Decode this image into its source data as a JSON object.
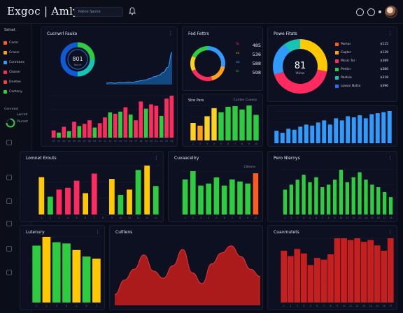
{
  "header": {
    "title": "Exgoc | Amlytics",
    "search_placeholder": "Ratoe Savne",
    "icons": [
      "bell-icon",
      "settings-icon",
      "help-icon",
      "menu-icon"
    ]
  },
  "sidebar": {
    "heading": "Salnat",
    "items": [
      {
        "label": "Cacer",
        "color": "#ff5a1f"
      },
      {
        "label": "Cracer",
        "color": "#ff9f1a"
      },
      {
        "label": "Conntaex",
        "color": "#2f9bff"
      },
      {
        "label": "Ckaner",
        "color": "#ff2b5e"
      },
      {
        "label": "Dnetee",
        "color": "#ff3b3b"
      },
      {
        "label": "Cacteny",
        "color": "#2ecc40"
      }
    ],
    "section_label": "Cenreasl",
    "sub_items": [
      "Lorcnd",
      "Plurast"
    ]
  },
  "panels": {
    "p1": {
      "title": "Cucnwrl Fauko",
      "donut_value": "801",
      "donut_sub": "Raccit"
    },
    "p2": {
      "title": "Fed Fettrs",
      "stats": [
        {
          "label": "Ta",
          "value": "485"
        },
        {
          "label": "sa",
          "value": "536"
        },
        {
          "label": "aa",
          "value": "588"
        },
        {
          "label": "la",
          "value": "598"
        }
      ]
    },
    "p3": {
      "title": "Powe Fitats",
      "donut_value": "81",
      "donut_sub": "Vtinan",
      "legend": [
        {
          "label": "Pomar",
          "value": "$115",
          "color": "#ff5a1f"
        },
        {
          "label": "Captsr",
          "value": "$139",
          "color": "#ff9f1a"
        },
        {
          "label": "Mcsic Tar",
          "value": "$389",
          "color": "#ff2b5e"
        },
        {
          "label": "Pmtisr",
          "value": "$380",
          "color": "#2ecc40"
        },
        {
          "label": "Pastsia",
          "value": "$318",
          "color": "#17c3b2"
        },
        {
          "label": "Lowan Natta",
          "value": "$396",
          "color": "#2f6bff"
        }
      ]
    },
    "p4": {
      "title": "Stre Pers",
      "legend": "Cuntes Cuaerp"
    },
    "p6": {
      "title": "Lomnet Erouts"
    },
    "p7": {
      "title": "Cuvaacellry",
      "legend": "Cliterre"
    },
    "p8": {
      "title": "Pero Nlernys"
    },
    "p9": {
      "title": "Lutenury"
    },
    "p10": {
      "title": "Culltens"
    },
    "p11": {
      "title": "Cuavrnutets"
    }
  },
  "chart_data": [
    {
      "type": "area",
      "panel": "p1",
      "values": [
        4,
        5,
        4,
        6,
        5,
        7,
        6,
        9,
        11,
        13,
        17,
        22,
        26,
        34,
        48,
        90
      ]
    },
    {
      "type": "bar",
      "panel": "p1",
      "categories": [
        "01",
        "02",
        "03",
        "04",
        "05",
        "06",
        "07",
        "08",
        "09",
        "10",
        "11",
        "12",
        "13",
        "14",
        "15",
        "16",
        "17",
        "18",
        "19",
        "20",
        "21",
        "22",
        "23",
        "24"
      ],
      "values": [
        10,
        7,
        15,
        9,
        22,
        16,
        19,
        24,
        14,
        20,
        28,
        35,
        33,
        36,
        42,
        32,
        24,
        50,
        40,
        46,
        44,
        30,
        54,
        58
      ],
      "colors": [
        "#ff2b5e",
        "#2ecc40",
        "#ff2b5e",
        "#2ecc40",
        "#ff2b5e",
        "#2ecc40",
        "#ff2b5e",
        "#ff2b5e",
        "#2ecc40",
        "#ff2b5e",
        "#ff2b5e",
        "#2ecc40",
        "#ff2b5e",
        "#2ecc40",
        "#ff2b5e",
        "#2ecc40",
        "#ff2b5e",
        "#ff2b5e",
        "#2ecc40",
        "#ff2b5e",
        "#ff2b5e",
        "#2ecc40",
        "#ff2b5e",
        "#ff2b5e"
      ]
    },
    {
      "type": "pie",
      "panel": "p2",
      "values": [
        28,
        18,
        22,
        14,
        18
      ],
      "colors": [
        "#2f9bff",
        "#ff9f1a",
        "#ff2b5e",
        "#ffd21f",
        "#2ecc40"
      ]
    },
    {
      "type": "bar",
      "panel": "p4",
      "categories": [
        "1",
        "2",
        "3",
        "4",
        "5",
        "6",
        "7",
        "8",
        "9",
        "10"
      ],
      "values": [
        26,
        22,
        36,
        48,
        42,
        50,
        51,
        46,
        52,
        38
      ],
      "colors": [
        "#ffd21f",
        "#ff9f1a",
        "#ffd21f",
        "#ffd21f",
        "#2ecc40",
        "#2ecc40",
        "#2ecc40",
        "#2ecc40",
        "#2ecc40",
        "#2ecc40"
      ]
    },
    {
      "type": "pie",
      "panel": "p3",
      "values": [
        28,
        42,
        20,
        10
      ],
      "colors": [
        "#ffc800",
        "#ff2b5e",
        "#2f9bff",
        "#17c3b2"
      ]
    },
    {
      "type": "bar",
      "panel": "p5",
      "categories": [
        "1",
        "2",
        "3",
        "4",
        "5",
        "6",
        "7",
        "8",
        "9",
        "10",
        "11",
        "12",
        "13",
        "14",
        "15",
        "16",
        "17",
        "18",
        "19",
        "20"
      ],
      "values": [
        12,
        10,
        14,
        13,
        16,
        18,
        17,
        20,
        22,
        18,
        24,
        22,
        26,
        25,
        27,
        24,
        28,
        29,
        30,
        31
      ],
      "colors": [
        "#2f9bff"
      ]
    },
    {
      "type": "bar",
      "panel": "p6",
      "categories": [
        "1",
        "2",
        "3",
        "4",
        "5",
        "6",
        "7",
        "8",
        "9",
        "10",
        "11",
        "12",
        "13",
        "14"
      ],
      "values": [
        42,
        20,
        28,
        30,
        38,
        24,
        46,
        0,
        40,
        22,
        28,
        50,
        55,
        32
      ],
      "colors": [
        "#ffc800",
        "#2ecc40",
        "#ff2b5e",
        "#ff2b5e",
        "#ff2b5e",
        "#ffc800",
        "#ff2b5e",
        "#000000",
        "#ffc800",
        "#2ecc40",
        "#ffc800",
        "#2ecc40",
        "#ffc800",
        "#2ecc40"
      ]
    },
    {
      "type": "bar",
      "panel": "p7",
      "categories": [
        "1",
        "2",
        "3",
        "4",
        "5",
        "6",
        "7",
        "8",
        "9",
        "10"
      ],
      "values": [
        34,
        42,
        28,
        30,
        36,
        28,
        34,
        32,
        30,
        40
      ],
      "colors": [
        "#2ecc40",
        "#2ecc40",
        "#2ecc40",
        "#2ecc40",
        "#2ecc40",
        "#2ecc40",
        "#2ecc40",
        "#2ecc40",
        "#2ecc40",
        "#ff5a1f"
      ]
    },
    {
      "type": "bar",
      "panel": "p8",
      "categories": [
        "1",
        "2",
        "3",
        "4",
        "5",
        "6",
        "7",
        "8",
        "9",
        "10",
        "11",
        "12",
        "13",
        "14",
        "15",
        "16",
        "17",
        "18"
      ],
      "values": [
        20,
        24,
        28,
        32,
        26,
        30,
        22,
        24,
        28,
        36,
        26,
        30,
        34,
        28,
        24,
        22,
        18,
        14
      ],
      "colors": [
        "#2ecc40"
      ]
    },
    {
      "type": "bar",
      "panel": "p9",
      "categories": [
        "1",
        "2",
        "3",
        "4",
        "5",
        "6",
        "7"
      ],
      "values": [
        52,
        60,
        55,
        54,
        48,
        42,
        40
      ],
      "colors": [
        "#2ecc40",
        "#ffc800",
        "#2ecc40",
        "#2ecc40",
        "#ffc800",
        "#2ecc40",
        "#ffc800"
      ]
    },
    {
      "type": "area",
      "panel": "p10",
      "values": [
        12,
        28,
        40,
        56,
        38,
        30,
        44,
        62,
        36,
        24,
        46,
        58,
        66,
        54,
        40,
        32
      ],
      "colors": [
        "#c42020"
      ]
    },
    {
      "type": "bar",
      "panel": "p11",
      "categories": [
        "1",
        "2",
        "3",
        "4",
        "5",
        "6",
        "7",
        "8",
        "9",
        "10",
        "11",
        "12",
        "13",
        "14",
        "15",
        "16",
        "17"
      ],
      "values": [
        58,
        52,
        60,
        55,
        42,
        50,
        48,
        54,
        72,
        72,
        70,
        72,
        68,
        70,
        64,
        58,
        72
      ],
      "colors": [
        "#c42020"
      ]
    }
  ]
}
